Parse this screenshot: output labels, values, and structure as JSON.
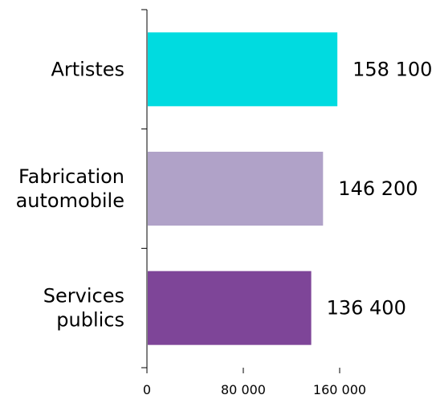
{
  "chart_data": {
    "type": "bar",
    "orientation": "horizontal",
    "categories": [
      [
        "Artistes"
      ],
      [
        "Fabrication",
        "automobile"
      ],
      [
        "Services",
        "publics"
      ]
    ],
    "values": [
      158100,
      146200,
      136400
    ],
    "value_labels": [
      "158 100",
      "146 200",
      "136 400"
    ],
    "colors": [
      "#00dbe0",
      "#b0a2c8",
      "#7e4598"
    ],
    "xlim": [
      0,
      160000
    ],
    "xticks": [
      0,
      80000,
      160000
    ],
    "xtick_labels": [
      "0",
      "80 000",
      "160 000"
    ],
    "title": "",
    "xlabel": "",
    "ylabel": "",
    "grid": false,
    "legend": "none"
  }
}
